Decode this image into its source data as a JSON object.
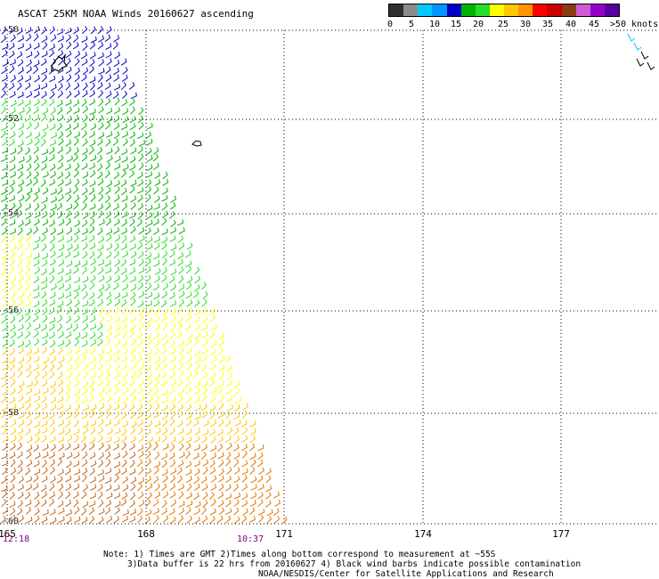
{
  "title": "ASCAT 25KM NOAA Winds 20160627 ascending",
  "legend": {
    "labels": [
      "0",
      "5",
      "10",
      "15",
      "20",
      "25",
      "30",
      "35",
      "40",
      "45",
      ">50 knots"
    ],
    "colors": [
      "#303030",
      "#8c8c8c",
      "#00c8ff",
      "#0096ff",
      "#0000c8",
      "#00b400",
      "#28dc28",
      "#ffff00",
      "#ffc800",
      "#ff9600",
      "#ff0000",
      "#c80000",
      "#8c3c14",
      "#d25ad2",
      "#9600c8",
      "#5a00a0"
    ]
  },
  "map": {
    "lon_ticks": [
      "165",
      "168",
      "171",
      "174",
      "177"
    ],
    "lat_labels": [
      "-50",
      "-52",
      "-54",
      "-56",
      "-58",
      "-60"
    ],
    "times": [
      "12:18",
      "10:37"
    ]
  },
  "notes": [
    "Note: 1) Times are GMT 2)Times along bottom correspond to measurement at ~55S",
    "3)Data buffer is 22 hrs from 20160627 4) Black wind barbs indicate possible contamination",
    "NOAA/NESDIS/Center for Satellite Applications and Research"
  ]
}
